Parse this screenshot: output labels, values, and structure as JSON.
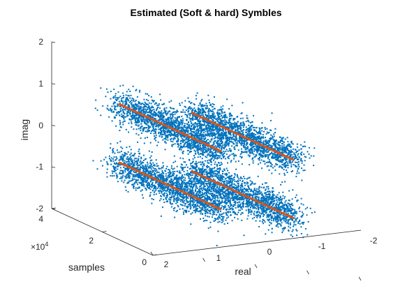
{
  "chart_data": {
    "type": "scatter3d",
    "title": "Estimated (Soft & hard) Symbles",
    "xlabel": "real",
    "ylabel": "samples",
    "zlabel": "imag",
    "x_ticks": [
      "2",
      "1",
      "0",
      "-1",
      "-2"
    ],
    "y_ticks": [
      "0",
      "2",
      "4"
    ],
    "y_exponent_base": "×10",
    "y_exponent_power": "4",
    "z_ticks": [
      "-2",
      "-1",
      "0",
      "1",
      "2"
    ],
    "xlim": [
      -2,
      2
    ],
    "ylim": [
      0,
      40000
    ],
    "zlim": [
      -2,
      2
    ],
    "grid": false,
    "series": [
      {
        "kind": "soft-symbols",
        "marker": "dot",
        "color": "#0072BD",
        "clusters": [
          {
            "real": 0.7,
            "imag": 0.7,
            "samples": [
              0,
              40000
            ]
          },
          {
            "real": -0.7,
            "imag": 0.7,
            "samples": [
              0,
              40000
            ]
          },
          {
            "real": 0.7,
            "imag": -0.7,
            "samples": [
              0,
              40000
            ]
          },
          {
            "real": -0.7,
            "imag": -0.7,
            "samples": [
              0,
              40000
            ]
          }
        ],
        "spread": 0.2
      },
      {
        "kind": "hard-symbols",
        "marker": "line",
        "color": "#D95319",
        "points": [
          {
            "real": 0.7,
            "imag": 0.7,
            "samples": [
              0,
              40000
            ]
          },
          {
            "real": -0.7,
            "imag": 0.7,
            "samples": [
              0,
              40000
            ]
          },
          {
            "real": 0.7,
            "imag": -0.7,
            "samples": [
              0,
              40000
            ]
          },
          {
            "real": -0.7,
            "imag": -0.7,
            "samples": [
              0,
              40000
            ]
          }
        ]
      }
    ]
  }
}
